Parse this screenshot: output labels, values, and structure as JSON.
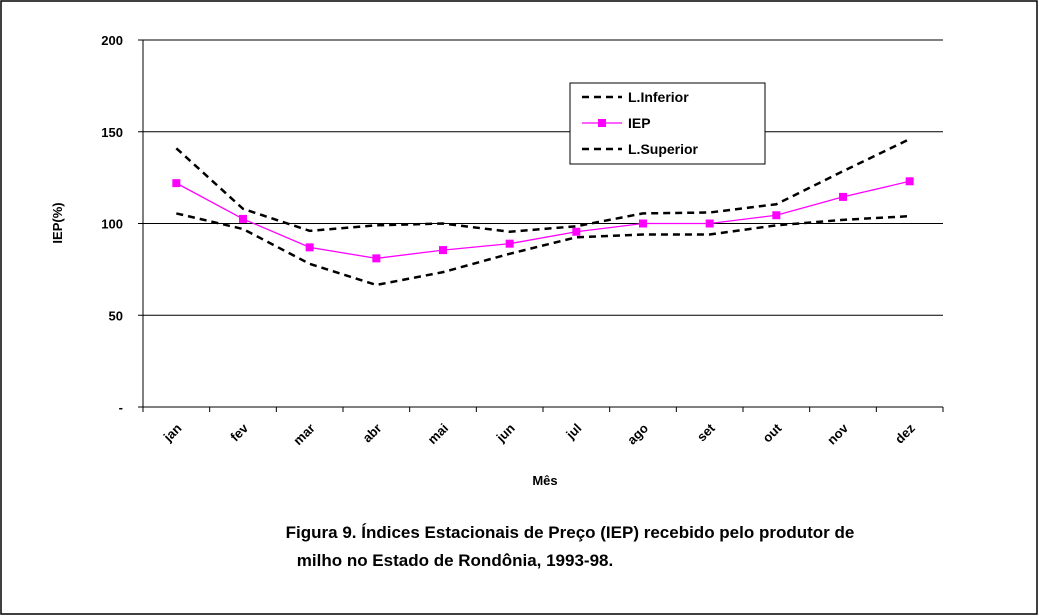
{
  "chart_data": {
    "type": "line",
    "categories": [
      "jan",
      "fev",
      "mar",
      "abr",
      "mai",
      "jun",
      "jul",
      "ago",
      "set",
      "out",
      "nov",
      "dez"
    ],
    "x_label": "Mês",
    "y_label": "IEP(%)",
    "caption": [
      "Figura 9. Índices Estacionais de Preço (IEP) recebido pelo produtor de",
      "milho no Estado de Rondônia, 1993-98."
    ],
    "series": [
      {
        "name": "L.Inferior",
        "color": "#000000",
        "line_style": "dashed",
        "marker": "none",
        "values": [
          105.5,
          97,
          78,
          66.5,
          73.5,
          83.5,
          92.5,
          94,
          94,
          99,
          102,
          104
        ]
      },
      {
        "name": "IEP",
        "color": "#ff00ff",
        "line_style": "solid",
        "marker": "square",
        "values": [
          122,
          102.5,
          87,
          81,
          85.5,
          89,
          95.5,
          100,
          100,
          104.5,
          114.5,
          123
        ]
      },
      {
        "name": "L.Superior",
        "color": "#000000",
        "line_style": "dashed",
        "marker": "none",
        "values": [
          141,
          108,
          96,
          99,
          100,
          95.5,
          98.5,
          105.5,
          106,
          110.5,
          128.5,
          146
        ]
      }
    ],
    "ylim": [
      0,
      200
    ],
    "yticks": [
      {
        "value": 0,
        "label": "-"
      },
      50,
      100,
      150,
      200
    ],
    "grid": true,
    "legend": "top-right"
  }
}
